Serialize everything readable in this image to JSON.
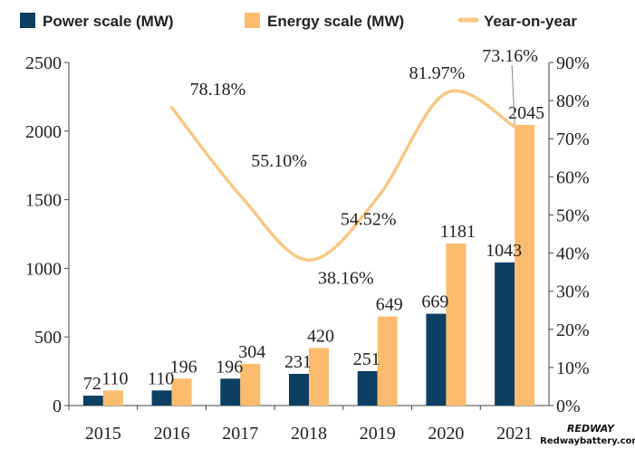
{
  "chart_data": {
    "type": "bar",
    "categories": [
      "2015",
      "2016",
      "2017",
      "2018",
      "2019",
      "2020",
      "2021"
    ],
    "series": [
      {
        "name": "Power scale (MW)",
        "kind": "bar",
        "axis": "left",
        "color": "#0d3f63",
        "values": [
          72,
          110,
          196,
          231,
          251,
          669,
          1043
        ]
      },
      {
        "name": "Energy scale (MW)",
        "kind": "bar",
        "axis": "left",
        "color": "#fbbc6e",
        "values": [
          110,
          196,
          304,
          420,
          649,
          1181,
          2045
        ]
      },
      {
        "name": "Year-on-year",
        "kind": "line",
        "axis": "right",
        "color": "#f9c784",
        "x": [
          "2016",
          "2017",
          "2018",
          "2019",
          "2020",
          "2021"
        ],
        "values": [
          78.18,
          55.1,
          38.16,
          54.52,
          81.97,
          73.16
        ],
        "labels": [
          "78.18%",
          "55.10%",
          "38.16%",
          "54.52%",
          "81.97%",
          "73.16%"
        ]
      }
    ],
    "left_axis": {
      "ylim": [
        0,
        2500
      ],
      "ticks": [
        "0",
        "500",
        "1000",
        "1500",
        "2000",
        "2500"
      ]
    },
    "right_axis": {
      "ylim": [
        0,
        90
      ],
      "ticks": [
        "0%",
        "10%",
        "20%",
        "30%",
        "40%",
        "50%",
        "60%",
        "70%",
        "80%",
        "90%"
      ]
    },
    "legend_position": "top",
    "grid": false
  },
  "watermark": {
    "brand": "REDWAY",
    "site": "Redwaybattery.com"
  }
}
